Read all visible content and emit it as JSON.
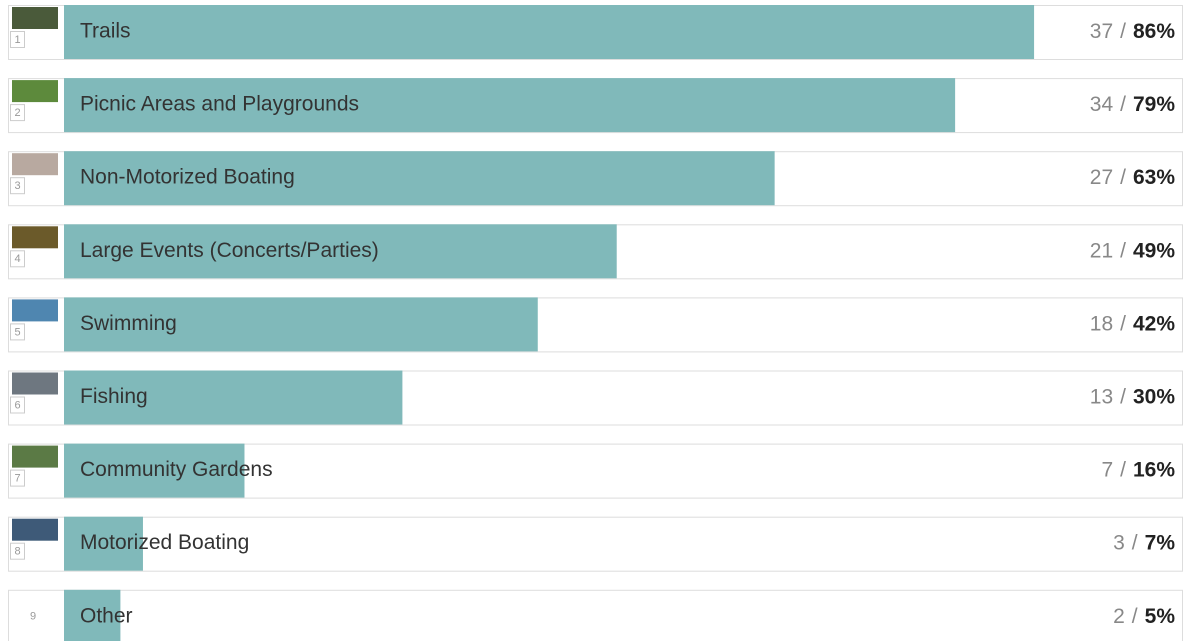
{
  "chart_data": {
    "type": "bar",
    "orientation": "horizontal",
    "categories": [
      "Trails",
      "Picnic Areas and Playgrounds",
      "Non-Motorized Boating",
      "Large Events (Concerts/Parties)",
      "Swimming",
      "Fishing",
      "Community Gardens",
      "Motorized Boating",
      "Other"
    ],
    "ranks": [
      1,
      2,
      3,
      4,
      5,
      6,
      7,
      8,
      9
    ],
    "counts": [
      37,
      34,
      27,
      21,
      18,
      13,
      7,
      3,
      2
    ],
    "separator": "/",
    "values": [
      86,
      79,
      63,
      49,
      42,
      30,
      16,
      7,
      5
    ],
    "value_labels": [
      "86%",
      "79%",
      "63%",
      "49%",
      "42%",
      "30%",
      "16%",
      "7%",
      "5%"
    ],
    "xlim": [
      0,
      100
    ],
    "color": "#80b9ba"
  }
}
